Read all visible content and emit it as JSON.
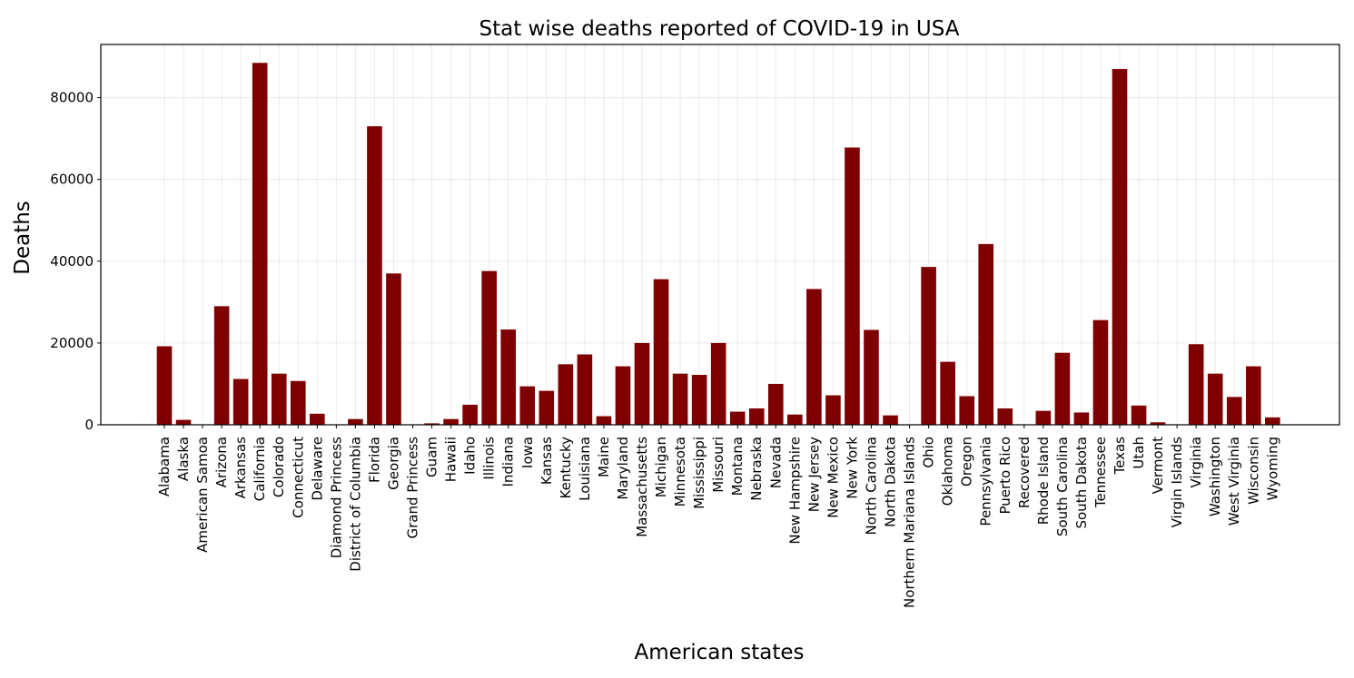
{
  "chart_data": {
    "type": "bar",
    "title": "Stat wise deaths reported of COVID-19 in USA",
    "xlabel": "American states",
    "ylabel": "Deaths",
    "ylim": [
      0,
      93000
    ],
    "yticks": [
      0,
      20000,
      40000,
      60000,
      80000
    ],
    "grid": true,
    "bar_color": "#7f0000",
    "categories": [
      "Alabama",
      "Alaska",
      "American Samoa",
      "Arizona",
      "Arkansas",
      "California",
      "Colorado",
      "Connecticut",
      "Delaware",
      "Diamond Princess",
      "District of Columbia",
      "Florida",
      "Georgia",
      "Grand Princess",
      "Guam",
      "Hawaii",
      "Idaho",
      "Illinois",
      "Indiana",
      "Iowa",
      "Kansas",
      "Kentucky",
      "Louisiana",
      "Maine",
      "Maryland",
      "Massachusetts",
      "Michigan",
      "Minnesota",
      "Mississippi",
      "Missouri",
      "Montana",
      "Nebraska",
      "Nevada",
      "New Hampshire",
      "New Jersey",
      "New Mexico",
      "New York",
      "North Carolina",
      "North Dakota",
      "Northern Mariana Islands",
      "Ohio",
      "Oklahoma",
      "Oregon",
      "Pennsylvania",
      "Puerto Rico",
      "Recovered",
      "Rhode Island",
      "South Carolina",
      "South Dakota",
      "Tennessee",
      "Texas",
      "Utah",
      "Vermont",
      "Virgin Islands",
      "Virginia",
      "Washington",
      "West Virginia",
      "Wisconsin",
      "Wyoming"
    ],
    "values": [
      19200,
      1200,
      0,
      29000,
      11200,
      88500,
      12500,
      10700,
      2700,
      0,
      1400,
      73000,
      37000,
      0,
      350,
      1400,
      4900,
      37600,
      23300,
      9400,
      8300,
      14800,
      17200,
      2100,
      14300,
      20000,
      35600,
      12500,
      12200,
      20000,
      3200,
      4000,
      10000,
      2500,
      33200,
      7200,
      67800,
      23200,
      2300,
      0,
      38600,
      15400,
      7000,
      44200,
      4000,
      0,
      3400,
      17600,
      3000,
      25600,
      87000,
      4700,
      600,
      100,
      19700,
      12500,
      6800,
      14300,
      1800
    ]
  }
}
